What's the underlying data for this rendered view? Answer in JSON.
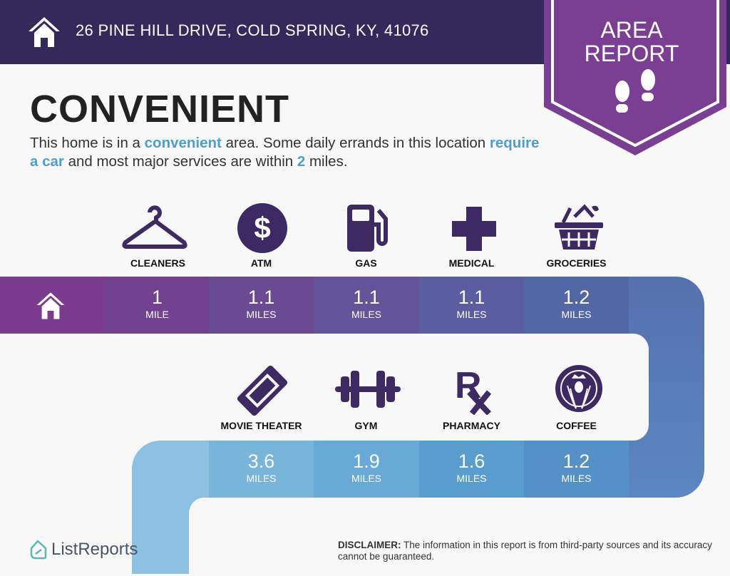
{
  "header": {
    "address": "26 PINE HILL DRIVE, COLD SPRING, KY, 41076",
    "icon": "house-icon",
    "badge_line1": "AREA",
    "badge_line2": "REPORT",
    "badge_icon": "footprints-icon"
  },
  "main": {
    "title": "CONVENIENT",
    "desc_1": "This home is in a ",
    "desc_hl1": "convenient",
    "desc_2": " area. Some daily errands in this location ",
    "desc_hl2": "require a car",
    "desc_3": " and most major services are within ",
    "desc_hl3": "2",
    "desc_4": " miles."
  },
  "row1": [
    {
      "label": "CLEANERS",
      "value": "1",
      "unit": "MILE",
      "icon": "hanger-icon"
    },
    {
      "label": "ATM",
      "value": "1.1",
      "unit": "MILES",
      "icon": "dollar-icon"
    },
    {
      "label": "GAS",
      "value": "1.1",
      "unit": "MILES",
      "icon": "gas-pump-icon"
    },
    {
      "label": "MEDICAL",
      "value": "1.1",
      "unit": "MILES",
      "icon": "medical-cross-icon"
    },
    {
      "label": "GROCERIES",
      "value": "1.2",
      "unit": "MILES",
      "icon": "basket-icon"
    }
  ],
  "row2": [
    {
      "label": "MOVIE THEATER",
      "value": "3.6",
      "unit": "MILES",
      "icon": "ticket-icon"
    },
    {
      "label": "GYM",
      "value": "1.9",
      "unit": "MILES",
      "icon": "dumbbell-icon"
    },
    {
      "label": "PHARMACY",
      "value": "1.6",
      "unit": "MILES",
      "icon": "rx-icon"
    },
    {
      "label": "COFFEE",
      "value": "1.2",
      "unit": "MILES",
      "icon": "starbucks-logo-icon"
    }
  ],
  "footer": {
    "logo": "ListReports",
    "disclaimer_label": "DISCLAIMER:",
    "disclaimer_text": " The information in this report is from third-party sources and its accuracy cannot be guaranteed."
  },
  "colors": {
    "header": "#35285a",
    "badge": "#7a3e93",
    "icon": "#3d2a63",
    "accent": "#4a9fd0"
  }
}
